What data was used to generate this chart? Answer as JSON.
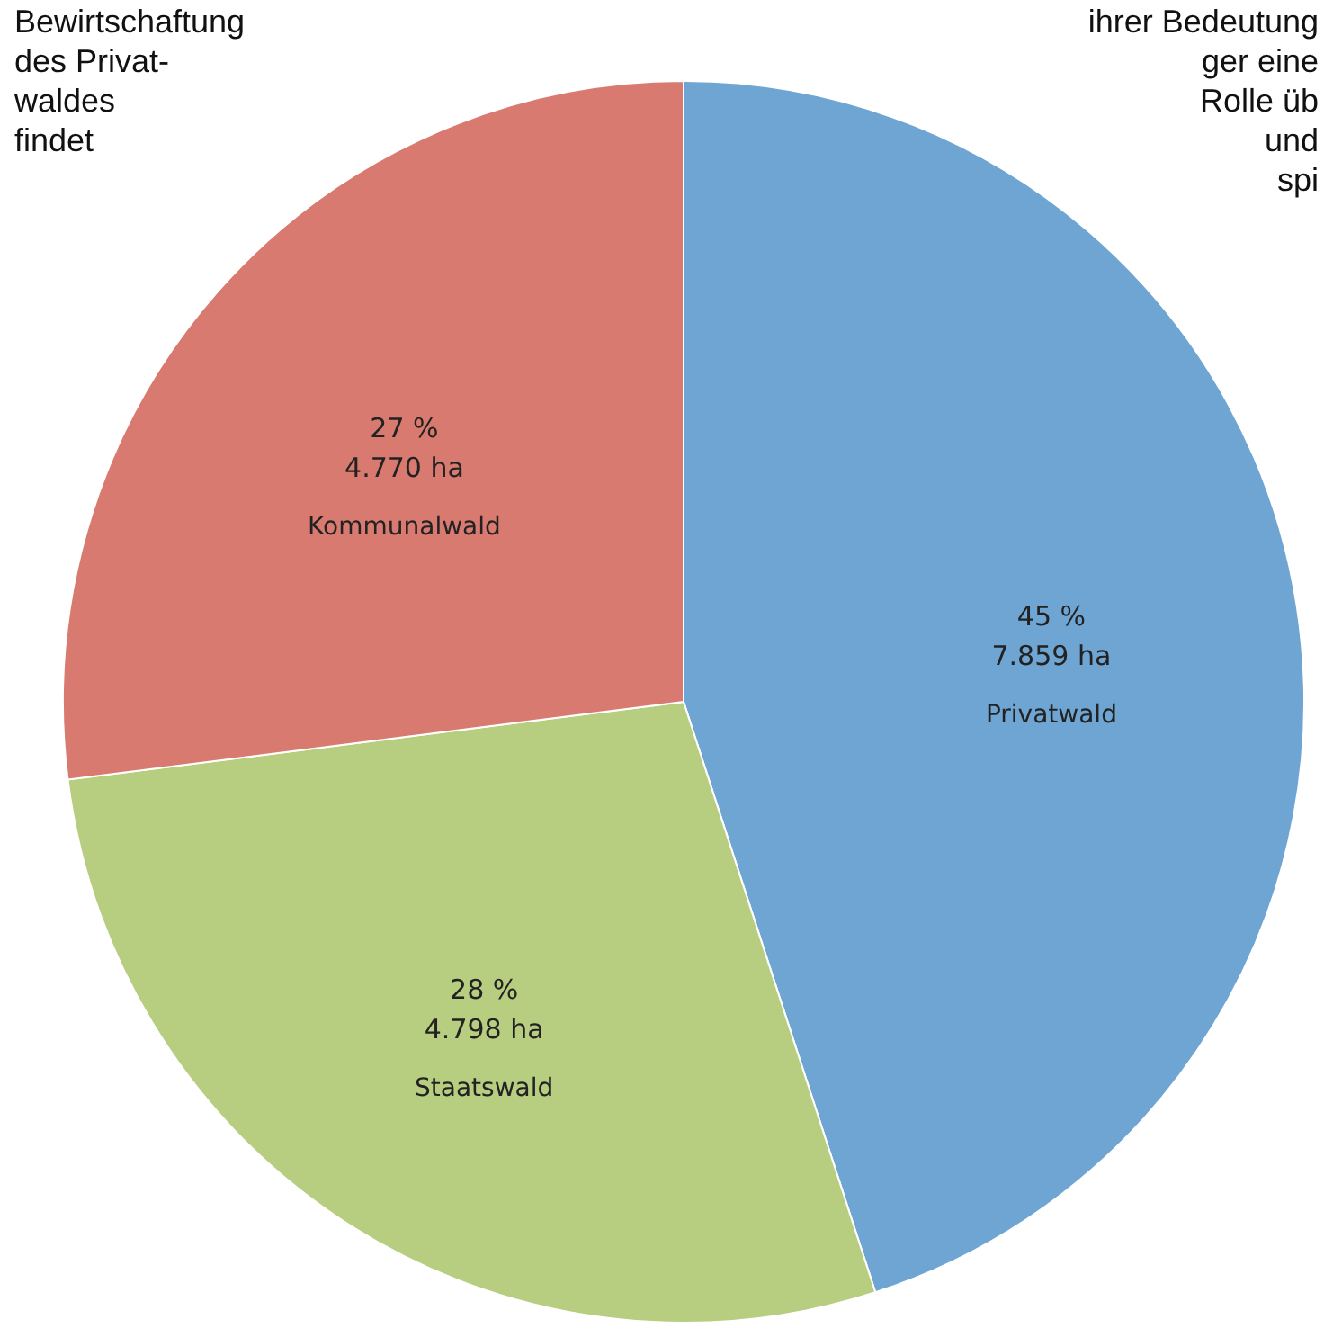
{
  "chart_data": {
    "type": "pie",
    "categories": [
      "Privatwald",
      "Staatswald",
      "Kommunalwald"
    ],
    "values": [
      45,
      28,
      27
    ],
    "value_labels": [
      "45 %\n7.859 ha",
      "28 %\n4.798 ha",
      "27 %\n4.770 ha"
    ],
    "colors": [
      "#6fa5d2",
      "#b7cd7f",
      "#d97a70"
    ],
    "annotations": [
      "Bewirtschaftung\ndes Privat-\nwaldes\nfindet",
      "ihrer Bedeutung\nger eine\nRolle üb\nund\nspi"
    ]
  }
}
